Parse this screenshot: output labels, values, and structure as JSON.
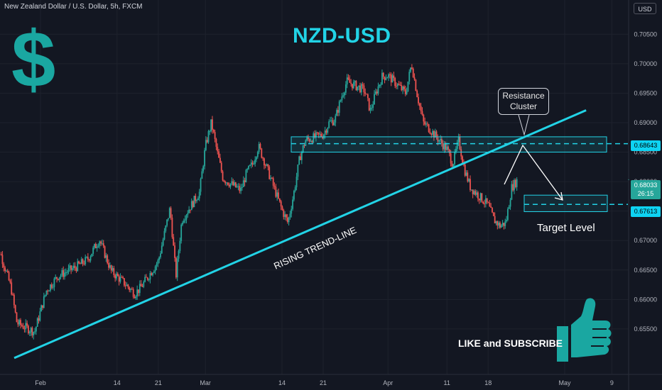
{
  "header": {
    "symbol_line": "New Zealand Dollar / U.S. Dollar, 5h, FXCM",
    "currency": "USD"
  },
  "title": "NZD-USD",
  "annotations": {
    "callout": "Resistance Cluster",
    "callout_line1": "Resistance",
    "callout_line2": "Cluster",
    "trendline_label": "RISING TREND-LINE",
    "target_label": "Target Level",
    "cta": "LIKE and SUBSCRIBE"
  },
  "price_tags": {
    "resistance": "0.68643",
    "current": "0.68033",
    "countdown": "26:15",
    "target": "0.67613"
  },
  "icons": {
    "logo": "dollar-sign-icon",
    "thumb": "thumbs-up-icon"
  },
  "colors": {
    "up": "#26a69a",
    "down": "#ef5350",
    "accent": "#22d3e6",
    "background": "#131722"
  },
  "chart_data": {
    "type": "candlestick",
    "y_ticks": [
      "0.70500",
      "0.70000",
      "0.69500",
      "0.69000",
      "0.68500",
      "0.68000",
      "0.67500",
      "0.67000",
      "0.66500",
      "0.66000",
      "0.65500"
    ],
    "x_ticks": [
      "Feb",
      "14",
      "21",
      "Mar",
      "14",
      "21",
      "Apr",
      "11",
      "18",
      "May",
      "9"
    ],
    "ylim": [
      0.6515,
      0.7072
    ],
    "resistance_zone": [
      0.685,
      0.6876
    ],
    "resistance_level": 0.68643,
    "target_zone": [
      0.6749,
      0.6777
    ],
    "target_level": 0.67613,
    "current_price": 0.68033,
    "trendline": {
      "start": [
        "Feb 1",
        0.6532
      ],
      "end": [
        "Apr 28",
        0.6921
      ]
    },
    "price_path": [
      [
        "Jan 24",
        0.669
      ],
      [
        "Jan 25",
        0.6685
      ],
      [
        "Jan 27",
        0.662
      ],
      [
        "Jan 28",
        0.656
      ],
      [
        "Jan 31",
        0.6545
      ],
      [
        "Feb 2",
        0.6615
      ],
      [
        "Feb 4",
        0.664
      ],
      [
        "Feb 7",
        0.6655
      ],
      [
        "Feb 9",
        0.6668
      ],
      [
        "Feb 11",
        0.6702
      ],
      [
        "Feb 13",
        0.6648
      ],
      [
        "Feb 15",
        0.663
      ],
      [
        "Feb 17",
        0.661
      ],
      [
        "Feb 18",
        0.662
      ],
      [
        "Feb 21",
        0.6665
      ],
      [
        "Feb 23",
        0.6755
      ],
      [
        "Feb 24",
        0.664
      ],
      [
        "Feb 25",
        0.6735
      ],
      [
        "Feb 28",
        0.6782
      ],
      [
        "Mar 1",
        0.686
      ],
      [
        "Mar 2",
        0.69
      ],
      [
        "Mar 3",
        0.685
      ],
      [
        "Mar 4",
        0.6805
      ],
      [
        "Mar 7",
        0.6785
      ],
      [
        "Mar 8",
        0.6815
      ],
      [
        "Mar 9",
        0.683
      ],
      [
        "Mar 10",
        0.686
      ],
      [
        "Mar 11",
        0.6835
      ],
      [
        "Mar 14",
        0.6752
      ],
      [
        "Mar 15",
        0.673
      ],
      [
        "Mar 16",
        0.678
      ],
      [
        "Mar 17",
        0.684
      ],
      [
        "Mar 18",
        0.687
      ],
      [
        "Mar 21",
        0.688
      ],
      [
        "Mar 22",
        0.69
      ],
      [
        "Mar 23",
        0.6905
      ],
      [
        "Mar 24",
        0.694
      ],
      [
        "Mar 25",
        0.697
      ],
      [
        "Mar 28",
        0.6955
      ],
      [
        "Mar 29",
        0.692
      ],
      [
        "Mar 30",
        0.6952
      ],
      [
        "Mar 31",
        0.6978
      ],
      [
        "Apr 1",
        0.698
      ],
      [
        "Apr 4",
        0.695
      ],
      [
        "Apr 5",
        0.7
      ],
      [
        "Apr 6",
        0.6945
      ],
      [
        "Apr 7",
        0.69
      ],
      [
        "Apr 8",
        0.689
      ],
      [
        "Apr 11",
        0.6855
      ],
      [
        "Apr 12",
        0.683
      ],
      [
        "Apr 13",
        0.687
      ],
      [
        "Apr 14",
        0.682
      ],
      [
        "Apr 15",
        0.679
      ],
      [
        "Apr 18",
        0.676
      ],
      [
        "Apr 19",
        0.6735
      ],
      [
        "Apr 20",
        0.6725
      ],
      [
        "Apr 21",
        0.673
      ],
      [
        "Apr 22",
        0.679
      ],
      [
        "Apr 23",
        0.6803
      ]
    ]
  }
}
